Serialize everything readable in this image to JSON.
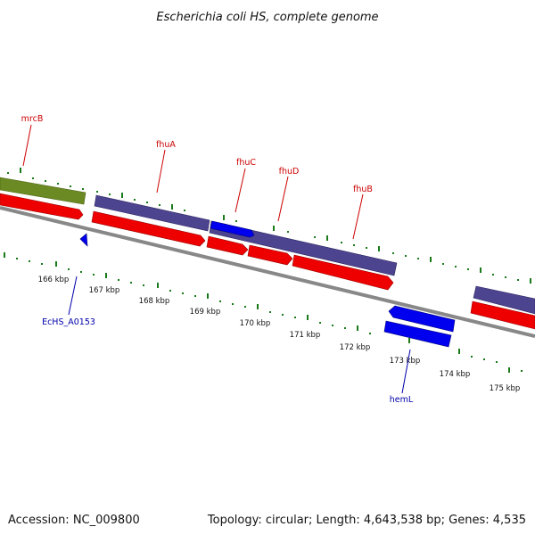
{
  "title": "Escherichia coli HS, complete genome",
  "footer": {
    "accession": "Accession: NC_009800",
    "summary": "Topology: circular; Length: 4,643,538 bp; Genes: 4,535"
  },
  "colors": {
    "background": "#ffffff",
    "backbone": "#888888",
    "tick_green": "#1a7a1a",
    "label_red": "#cc0000",
    "label_blue": "#0000aa",
    "feature_red": "#ee0000",
    "feature_blue": "#0000ee",
    "feature_purple": "#4d4490",
    "feature_olive": "#6b8a23"
  },
  "kbp_ticks": [
    "166 kbp",
    "167 kbp",
    "168 kbp",
    "169 kbp",
    "170 kbp",
    "171 kbp",
    "172 kbp",
    "173 kbp",
    "174 kbp",
    "175 kbp"
  ],
  "gene_labels": {
    "mrcB": "mrcB",
    "fhuA": "fhuA",
    "fhuC": "fhuC",
    "fhuD": "fhuD",
    "fhuB": "fhuB",
    "ecHS_A0153": "EcHS_A0153",
    "hemL": "hemL"
  }
}
